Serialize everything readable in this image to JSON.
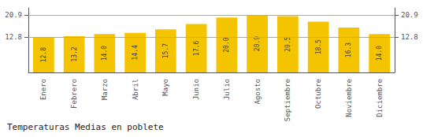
{
  "chart_data": {
    "type": "bar",
    "title": "Temperaturas Medias en poblete",
    "categories": [
      "Enero",
      "Febrero",
      "Marzo",
      "Abril",
      "Mayo",
      "Junio",
      "Julio",
      "Agosto",
      "Septiembre",
      "Octubre",
      "Noviembre",
      "Diciembre"
    ],
    "values": [
      12.8,
      13.2,
      14.0,
      14.4,
      15.7,
      17.6,
      20.0,
      20.9,
      20.5,
      18.5,
      16.3,
      14.0
    ],
    "value_labels": [
      "12.8",
      "13.2",
      "14.0",
      "14.4",
      "15.7",
      "17.6",
      "20.0",
      "20.9",
      "20.5",
      "18.5",
      "16.3",
      "14.0"
    ],
    "color": "#F5C400",
    "ylim": [
      0,
      23.5
    ],
    "yticks": [
      12.8,
      20.9
    ],
    "y2lim": [
      0,
      23.5
    ],
    "y2ticks": [
      12.8,
      20.9
    ],
    "grid": true,
    "data_labels": true
  }
}
